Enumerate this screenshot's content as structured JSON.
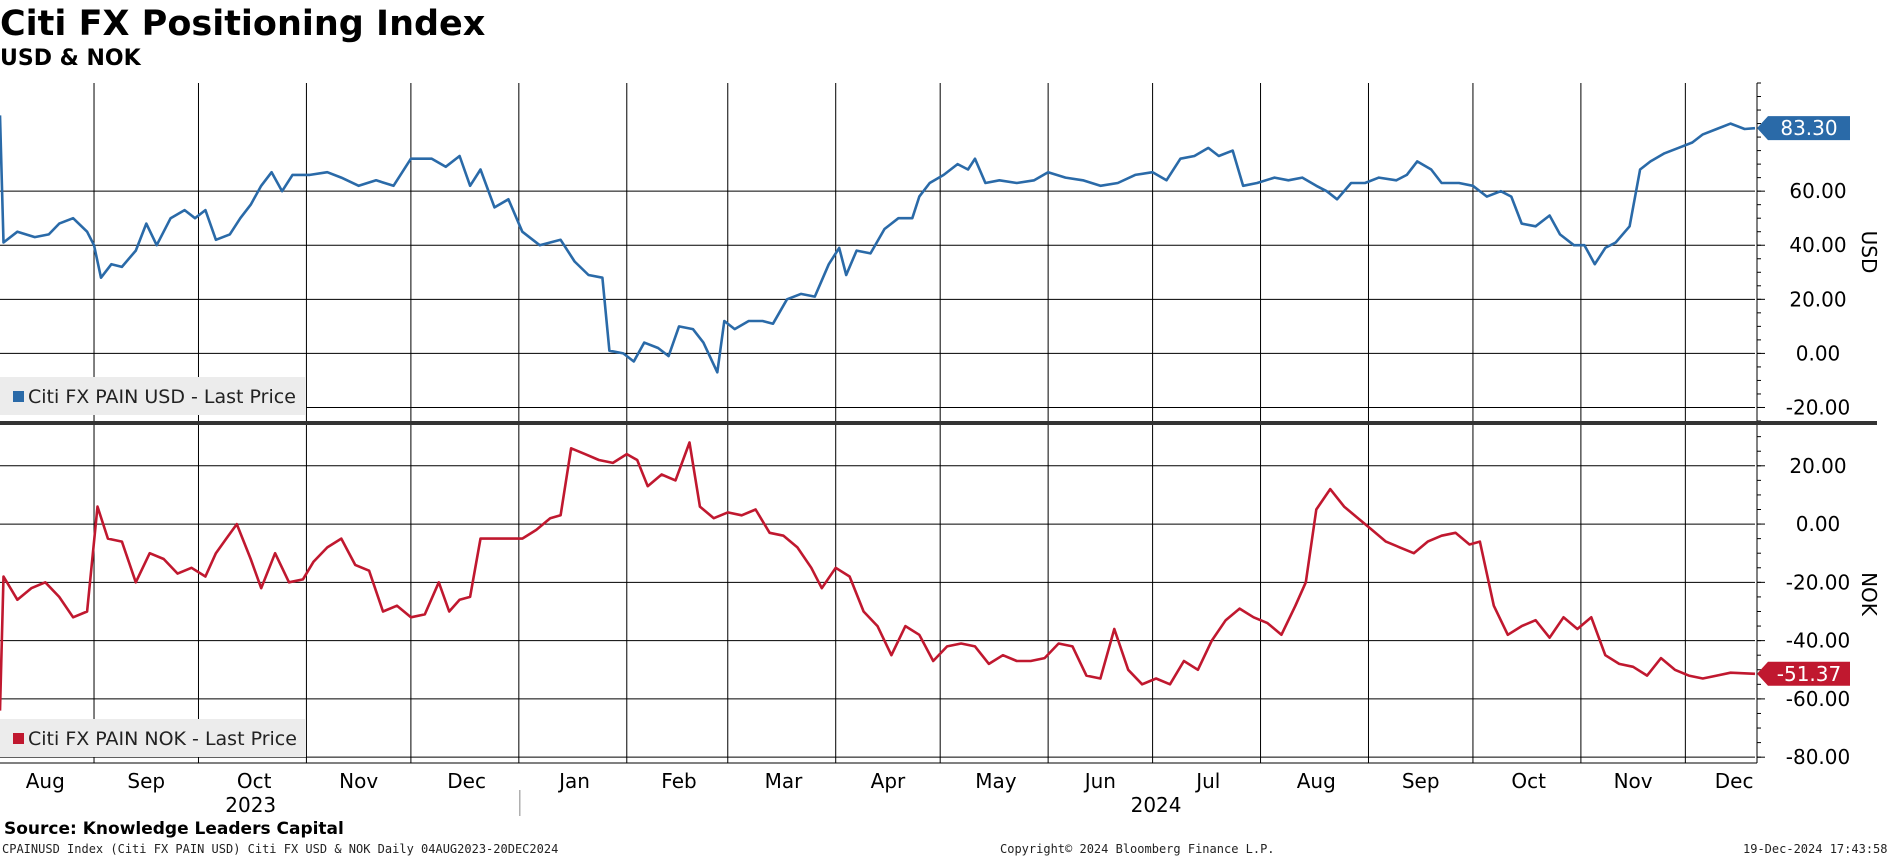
{
  "header": {
    "title": "Citi FX Positioning Index",
    "subtitle": "USD & NOK"
  },
  "footer": {
    "source": "Source: Knowledge Leaders Capital",
    "left": "CPAINUSD Index (Citi FX PAIN USD) Citi FX USD & NOK  Daily 04AUG2023-20DEC2024",
    "center": "Copyright© 2024 Bloomberg Finance L.P.",
    "right": "19-Dec-2024 17:43:58"
  },
  "chart_data": [
    {
      "type": "line",
      "axis_title": "USD",
      "legend": "Citi FX PAIN USD - Last Price",
      "color": "#2a6aa8",
      "ylim": [
        -25,
        100
      ],
      "yticks": [
        -20,
        0,
        20,
        40,
        60
      ],
      "ytick_labels": [
        "-20.00",
        "0.00",
        "20.00",
        "40.00",
        "60.00"
      ],
      "last_value_label": "83.30",
      "x_range": [
        "2023-08-04",
        "2024-12-20"
      ],
      "points": [
        [
          "2023-08-04",
          88
        ],
        [
          "2023-08-05",
          41
        ],
        [
          "2023-08-09",
          45
        ],
        [
          "2023-08-14",
          43
        ],
        [
          "2023-08-18",
          44
        ],
        [
          "2023-08-21",
          48
        ],
        [
          "2023-08-25",
          50
        ],
        [
          "2023-08-29",
          45
        ],
        [
          "2023-08-31",
          40
        ],
        [
          "2023-09-02",
          28
        ],
        [
          "2023-09-05",
          33
        ],
        [
          "2023-09-08",
          32
        ],
        [
          "2023-09-12",
          38
        ],
        [
          "2023-09-15",
          48
        ],
        [
          "2023-09-18",
          40
        ],
        [
          "2023-09-22",
          50
        ],
        [
          "2023-09-26",
          53
        ],
        [
          "2023-09-29",
          50
        ],
        [
          "2023-10-02",
          53
        ],
        [
          "2023-10-05",
          42
        ],
        [
          "2023-10-09",
          44
        ],
        [
          "2023-10-12",
          50
        ],
        [
          "2023-10-15",
          55
        ],
        [
          "2023-10-18",
          62
        ],
        [
          "2023-10-21",
          67
        ],
        [
          "2023-10-24",
          60
        ],
        [
          "2023-10-27",
          66
        ],
        [
          "2023-11-01",
          66
        ],
        [
          "2023-11-06",
          67
        ],
        [
          "2023-11-10",
          65
        ],
        [
          "2023-11-15",
          62
        ],
        [
          "2023-11-20",
          64
        ],
        [
          "2023-11-25",
          62
        ],
        [
          "2023-11-30",
          72
        ],
        [
          "2023-12-06",
          72
        ],
        [
          "2023-12-10",
          69
        ],
        [
          "2023-12-14",
          73
        ],
        [
          "2023-12-17",
          62
        ],
        [
          "2023-12-20",
          68
        ],
        [
          "2023-12-24",
          54
        ],
        [
          "2023-12-28",
          57
        ],
        [
          "2024-01-01",
          45
        ],
        [
          "2024-01-06",
          40
        ],
        [
          "2024-01-12",
          42
        ],
        [
          "2024-01-16",
          34
        ],
        [
          "2024-01-20",
          29
        ],
        [
          "2024-01-24",
          28
        ],
        [
          "2024-01-26",
          1
        ],
        [
          "2024-01-30",
          0
        ],
        [
          "2024-02-02",
          -3
        ],
        [
          "2024-02-05",
          4
        ],
        [
          "2024-02-09",
          2
        ],
        [
          "2024-02-12",
          -1
        ],
        [
          "2024-02-15",
          10
        ],
        [
          "2024-02-19",
          9
        ],
        [
          "2024-02-22",
          4
        ],
        [
          "2024-02-26",
          -7
        ],
        [
          "2024-02-28",
          12
        ],
        [
          "2024-03-02",
          9
        ],
        [
          "2024-03-06",
          12
        ],
        [
          "2024-03-10",
          12
        ],
        [
          "2024-03-13",
          11
        ],
        [
          "2024-03-17",
          20
        ],
        [
          "2024-03-21",
          22
        ],
        [
          "2024-03-25",
          21
        ],
        [
          "2024-03-29",
          33
        ],
        [
          "2024-04-01",
          39
        ],
        [
          "2024-04-03",
          29
        ],
        [
          "2024-04-06",
          38
        ],
        [
          "2024-04-10",
          37
        ],
        [
          "2024-04-14",
          46
        ],
        [
          "2024-04-18",
          50
        ],
        [
          "2024-04-22",
          50
        ],
        [
          "2024-04-24",
          58
        ],
        [
          "2024-04-27",
          63
        ],
        [
          "2024-05-01",
          66
        ],
        [
          "2024-05-05",
          70
        ],
        [
          "2024-05-08",
          68
        ],
        [
          "2024-05-10",
          72
        ],
        [
          "2024-05-13",
          63
        ],
        [
          "2024-05-17",
          64
        ],
        [
          "2024-05-22",
          63
        ],
        [
          "2024-05-27",
          64
        ],
        [
          "2024-05-31",
          67
        ],
        [
          "2024-06-05",
          65
        ],
        [
          "2024-06-10",
          64
        ],
        [
          "2024-06-15",
          62
        ],
        [
          "2024-06-20",
          63
        ],
        [
          "2024-06-25",
          66
        ],
        [
          "2024-06-30",
          67
        ],
        [
          "2024-07-04",
          64
        ],
        [
          "2024-07-08",
          72
        ],
        [
          "2024-07-12",
          73
        ],
        [
          "2024-07-16",
          76
        ],
        [
          "2024-07-19",
          73
        ],
        [
          "2024-07-23",
          75
        ],
        [
          "2024-07-26",
          62
        ],
        [
          "2024-07-30",
          63
        ],
        [
          "2024-08-04",
          65
        ],
        [
          "2024-08-08",
          64
        ],
        [
          "2024-08-12",
          65
        ],
        [
          "2024-08-16",
          62
        ],
        [
          "2024-08-19",
          60
        ],
        [
          "2024-08-22",
          57
        ],
        [
          "2024-08-26",
          63
        ],
        [
          "2024-08-30",
          63
        ],
        [
          "2024-09-03",
          65
        ],
        [
          "2024-09-08",
          64
        ],
        [
          "2024-09-11",
          66
        ],
        [
          "2024-09-14",
          71
        ],
        [
          "2024-09-18",
          68
        ],
        [
          "2024-09-21",
          63
        ],
        [
          "2024-09-26",
          63
        ],
        [
          "2024-09-30",
          62
        ],
        [
          "2024-10-04",
          58
        ],
        [
          "2024-10-08",
          60
        ],
        [
          "2024-10-11",
          58
        ],
        [
          "2024-10-14",
          48
        ],
        [
          "2024-10-18",
          47
        ],
        [
          "2024-10-22",
          51
        ],
        [
          "2024-10-25",
          44
        ],
        [
          "2024-10-29",
          40
        ],
        [
          "2024-11-01",
          40
        ],
        [
          "2024-11-04",
          33
        ],
        [
          "2024-11-07",
          39
        ],
        [
          "2024-11-10",
          41
        ],
        [
          "2024-11-14",
          47
        ],
        [
          "2024-11-17",
          68
        ],
        [
          "2024-11-20",
          71
        ],
        [
          "2024-11-24",
          74
        ],
        [
          "2024-11-28",
          76
        ],
        [
          "2024-12-02",
          78
        ],
        [
          "2024-12-05",
          81
        ],
        [
          "2024-12-09",
          83
        ],
        [
          "2024-12-13",
          85
        ],
        [
          "2024-12-17",
          83
        ],
        [
          "2024-12-20",
          83.3
        ]
      ]
    },
    {
      "type": "line",
      "axis_title": "NOK",
      "legend": "Citi FX PAIN NOK - Last Price",
      "color": "#c0182f",
      "ylim": [
        -82,
        34
      ],
      "yticks": [
        -80,
        -60,
        -40,
        -20,
        0,
        20
      ],
      "ytick_labels": [
        "-80.00",
        "-60.00",
        "-40.00",
        "-20.00",
        "0.00",
        "20.00"
      ],
      "last_value_label": "-51.37",
      "x_range": [
        "2023-08-04",
        "2024-12-20"
      ],
      "points": [
        [
          "2023-08-04",
          -64
        ],
        [
          "2023-08-05",
          -18
        ],
        [
          "2023-08-09",
          -26
        ],
        [
          "2023-08-13",
          -22
        ],
        [
          "2023-08-17",
          -20
        ],
        [
          "2023-08-21",
          -25
        ],
        [
          "2023-08-25",
          -32
        ],
        [
          "2023-08-29",
          -30
        ],
        [
          "2023-09-01",
          6
        ],
        [
          "2023-09-04",
          -5
        ],
        [
          "2023-09-08",
          -6
        ],
        [
          "2023-09-12",
          -20
        ],
        [
          "2023-09-16",
          -10
        ],
        [
          "2023-09-20",
          -12
        ],
        [
          "2023-09-24",
          -17
        ],
        [
          "2023-09-28",
          -15
        ],
        [
          "2023-10-02",
          -18
        ],
        [
          "2023-10-05",
          -10
        ],
        [
          "2023-10-08",
          -5
        ],
        [
          "2023-10-11",
          0
        ],
        [
          "2023-10-15",
          -12
        ],
        [
          "2023-10-18",
          -22
        ],
        [
          "2023-10-22",
          -10
        ],
        [
          "2023-10-26",
          -20
        ],
        [
          "2023-10-30",
          -19
        ],
        [
          "2023-11-02",
          -13
        ],
        [
          "2023-11-06",
          -8
        ],
        [
          "2023-11-10",
          -5
        ],
        [
          "2023-11-14",
          -14
        ],
        [
          "2023-11-18",
          -16
        ],
        [
          "2023-11-22",
          -30
        ],
        [
          "2023-11-26",
          -28
        ],
        [
          "2023-11-30",
          -32
        ],
        [
          "2023-12-04",
          -31
        ],
        [
          "2023-12-08",
          -20
        ],
        [
          "2023-12-11",
          -30
        ],
        [
          "2023-12-14",
          -26
        ],
        [
          "2023-12-17",
          -25
        ],
        [
          "2023-12-20",
          -5
        ],
        [
          "2023-12-24",
          -5
        ],
        [
          "2023-12-28",
          -5
        ],
        [
          "2024-01-01",
          -5
        ],
        [
          "2024-01-05",
          -2
        ],
        [
          "2024-01-09",
          2
        ],
        [
          "2024-01-12",
          3
        ],
        [
          "2024-01-15",
          26
        ],
        [
          "2024-01-19",
          24
        ],
        [
          "2024-01-23",
          22
        ],
        [
          "2024-01-27",
          21
        ],
        [
          "2024-01-31",
          24
        ],
        [
          "2024-02-03",
          22
        ],
        [
          "2024-02-06",
          13
        ],
        [
          "2024-02-10",
          17
        ],
        [
          "2024-02-14",
          15
        ],
        [
          "2024-02-18",
          28
        ],
        [
          "2024-02-21",
          6
        ],
        [
          "2024-02-25",
          2
        ],
        [
          "2024-02-29",
          4
        ],
        [
          "2024-03-04",
          3
        ],
        [
          "2024-03-08",
          5
        ],
        [
          "2024-03-12",
          -3
        ],
        [
          "2024-03-16",
          -4
        ],
        [
          "2024-03-20",
          -8
        ],
        [
          "2024-03-24",
          -15
        ],
        [
          "2024-03-27",
          -22
        ],
        [
          "2024-03-31",
          -15
        ],
        [
          "2024-04-04",
          -18
        ],
        [
          "2024-04-08",
          -30
        ],
        [
          "2024-04-12",
          -35
        ],
        [
          "2024-04-16",
          -45
        ],
        [
          "2024-04-20",
          -35
        ],
        [
          "2024-04-24",
          -38
        ],
        [
          "2024-04-28",
          -47
        ],
        [
          "2024-05-02",
          -42
        ],
        [
          "2024-05-06",
          -41
        ],
        [
          "2024-05-10",
          -42
        ],
        [
          "2024-05-14",
          -48
        ],
        [
          "2024-05-18",
          -45
        ],
        [
          "2024-05-22",
          -47
        ],
        [
          "2024-05-26",
          -47
        ],
        [
          "2024-05-30",
          -46
        ],
        [
          "2024-06-03",
          -41
        ],
        [
          "2024-06-07",
          -42
        ],
        [
          "2024-06-11",
          -52
        ],
        [
          "2024-06-15",
          -53
        ],
        [
          "2024-06-19",
          -36
        ],
        [
          "2024-06-23",
          -50
        ],
        [
          "2024-06-27",
          -55
        ],
        [
          "2024-07-01",
          -53
        ],
        [
          "2024-07-05",
          -55
        ],
        [
          "2024-07-09",
          -47
        ],
        [
          "2024-07-13",
          -50
        ],
        [
          "2024-07-17",
          -40
        ],
        [
          "2024-07-21",
          -33
        ],
        [
          "2024-07-25",
          -29
        ],
        [
          "2024-07-29",
          -32
        ],
        [
          "2024-08-02",
          -34
        ],
        [
          "2024-08-06",
          -38
        ],
        [
          "2024-08-10",
          -28
        ],
        [
          "2024-08-13",
          -20
        ],
        [
          "2024-08-16",
          5
        ],
        [
          "2024-08-20",
          12
        ],
        [
          "2024-08-24",
          6
        ],
        [
          "2024-08-28",
          2
        ],
        [
          "2024-09-01",
          -2
        ],
        [
          "2024-09-05",
          -6
        ],
        [
          "2024-09-09",
          -8
        ],
        [
          "2024-09-13",
          -10
        ],
        [
          "2024-09-17",
          -6
        ],
        [
          "2024-09-21",
          -4
        ],
        [
          "2024-09-25",
          -3
        ],
        [
          "2024-09-29",
          -7
        ],
        [
          "2024-10-02",
          -6
        ],
        [
          "2024-10-06",
          -28
        ],
        [
          "2024-10-10",
          -38
        ],
        [
          "2024-10-14",
          -35
        ],
        [
          "2024-10-18",
          -33
        ],
        [
          "2024-10-22",
          -39
        ],
        [
          "2024-10-26",
          -32
        ],
        [
          "2024-10-30",
          -36
        ],
        [
          "2024-11-03",
          -32
        ],
        [
          "2024-11-07",
          -45
        ],
        [
          "2024-11-11",
          -48
        ],
        [
          "2024-11-15",
          -49
        ],
        [
          "2024-11-19",
          -52
        ],
        [
          "2024-11-23",
          -46
        ],
        [
          "2024-11-27",
          -50
        ],
        [
          "2024-12-01",
          -52
        ],
        [
          "2024-12-05",
          -53
        ],
        [
          "2024-12-09",
          -52
        ],
        [
          "2024-12-13",
          -51
        ],
        [
          "2024-12-20",
          -51.37
        ]
      ]
    }
  ],
  "x_axis": {
    "gridlines": [
      "2023-08-31",
      "2023-09-30",
      "2023-10-31",
      "2023-11-30",
      "2023-12-31",
      "2024-01-31",
      "2024-02-29",
      "2024-03-31",
      "2024-04-30",
      "2024-05-31",
      "2024-06-30",
      "2024-07-31",
      "2024-08-31",
      "2024-09-30",
      "2024-10-31",
      "2024-11-30"
    ],
    "month_labels": [
      [
        "2023-08-17",
        "Aug"
      ],
      [
        "2023-09-15",
        "Sep"
      ],
      [
        "2023-10-16",
        "Oct"
      ],
      [
        "2023-11-15",
        "Nov"
      ],
      [
        "2023-12-16",
        "Dec"
      ],
      [
        "2024-01-16",
        "Jan"
      ],
      [
        "2024-02-15",
        "Feb"
      ],
      [
        "2024-03-16",
        "Mar"
      ],
      [
        "2024-04-15",
        "Apr"
      ],
      [
        "2024-05-16",
        "May"
      ],
      [
        "2024-06-15",
        "Jun"
      ],
      [
        "2024-07-16",
        "Jul"
      ],
      [
        "2024-08-16",
        "Aug"
      ],
      [
        "2024-09-15",
        "Sep"
      ],
      [
        "2024-10-16",
        "Oct"
      ],
      [
        "2024-11-15",
        "Nov"
      ],
      [
        "2024-12-14",
        "Dec"
      ]
    ],
    "year_labels": [
      [
        "2023-10-15",
        "2023"
      ],
      [
        "2024-07-01",
        "2024"
      ]
    ],
    "year_divider": "2023-12-31"
  }
}
